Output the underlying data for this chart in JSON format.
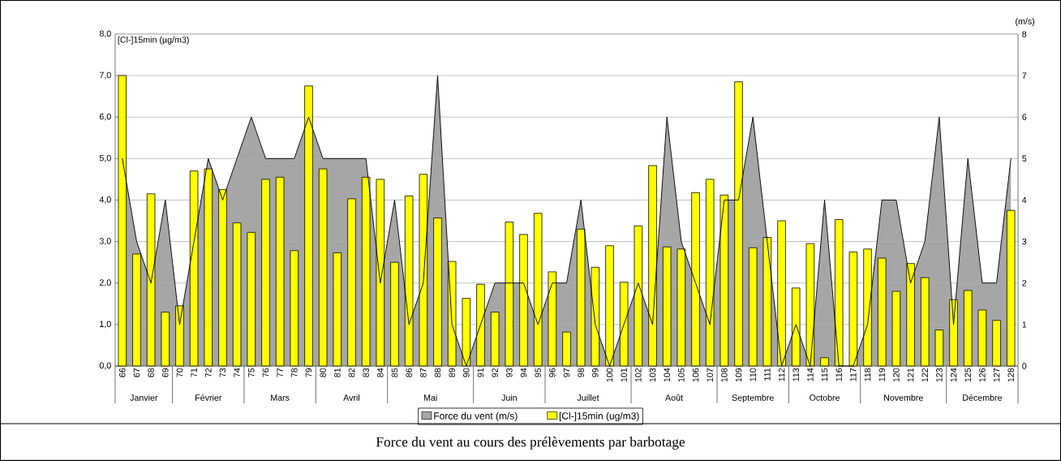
{
  "chart_data": {
    "type": "bar",
    "title": "Force du vent au cours des prélèvements par barbotage",
    "ylabel": "[Cl-]15min (µg/m3)",
    "y2label": "(m/s)",
    "categories": [
      "66",
      "67",
      "68",
      "69",
      "70",
      "71",
      "72",
      "73",
      "74",
      "75",
      "76",
      "77",
      "78",
      "79",
      "80",
      "81",
      "82",
      "83",
      "84",
      "85",
      "86",
      "87",
      "88",
      "89",
      "90",
      "91",
      "92",
      "93",
      "94",
      "95",
      "96",
      "97",
      "98",
      "99",
      "100",
      "101",
      "102",
      "103",
      "104",
      "105",
      "106",
      "107",
      "108",
      "109",
      "110",
      "111",
      "112",
      "113",
      "114",
      "115",
      "116",
      "117",
      "118",
      "119",
      "120",
      "121",
      "122",
      "123",
      "124",
      "125",
      "126",
      "127",
      "128"
    ],
    "series": [
      {
        "name": "Force du vent (m/s)",
        "type": "area",
        "axis": "y2",
        "color": "#a6a6a6",
        "values": [
          5,
          3,
          2,
          4,
          1,
          3,
          5,
          4,
          5,
          6,
          5,
          5,
          5,
          6,
          5,
          5,
          5,
          5,
          2,
          4,
          1,
          2,
          7,
          1,
          0,
          1,
          2,
          2,
          2,
          1,
          2,
          2,
          4,
          1,
          0,
          1,
          2,
          1,
          6,
          3,
          2,
          1,
          4,
          4,
          6,
          3,
          0,
          1,
          0,
          4,
          0,
          0,
          1,
          4,
          4,
          2,
          3,
          6,
          1,
          5,
          2,
          2,
          5
        ]
      },
      {
        "name": "[Cl-]15min (ug/m3)",
        "color": "#ffff00",
        "values": [
          7.0,
          2.7,
          4.15,
          1.3,
          1.45,
          4.7,
          4.75,
          4.25,
          3.45,
          3.22,
          4.5,
          4.55,
          2.78,
          6.75,
          4.75,
          2.73,
          4.03,
          4.55,
          4.5,
          2.5,
          4.1,
          4.62,
          3.57,
          2.52,
          1.63,
          1.97,
          1.3,
          3.47,
          3.17,
          3.68,
          2.27,
          0.82,
          3.3,
          2.38,
          2.9,
          2.02,
          3.38,
          4.83,
          2.87,
          2.82,
          4.18,
          4.5,
          4.12,
          6.85,
          2.85,
          3.1,
          3.5,
          1.88,
          2.95,
          0.2,
          3.53,
          2.75,
          2.82,
          2.6,
          1.8,
          2.47,
          2.13,
          0.87,
          1.6,
          1.82,
          1.35,
          1.1,
          3.75
        ]
      }
    ],
    "ylim": [
      0,
      8
    ],
    "yticks": [
      {
        "value": 0,
        "label": "0,0"
      },
      {
        "value": 1,
        "label": "1,0"
      },
      {
        "value": 2,
        "label": "2,0"
      },
      {
        "value": 3,
        "label": "3,0"
      },
      {
        "value": 4,
        "label": "4,0"
      },
      {
        "value": 5,
        "label": "5,0"
      },
      {
        "value": 6,
        "label": "6,0"
      },
      {
        "value": 7,
        "label": "7,0"
      },
      {
        "value": 8,
        "label": "8,0"
      }
    ],
    "y2lim": [
      0,
      8
    ],
    "y2ticks": [
      0,
      1,
      2,
      3,
      4,
      5,
      6,
      7,
      8
    ],
    "grid": "y",
    "legend": "bottom",
    "annotations": [
      "Janvier",
      "Février",
      "Mars",
      "Avril",
      "Mai",
      "Juin",
      "Juillet",
      "Août",
      "Septembre",
      "Octobre",
      "Novembre",
      "Décembre"
    ]
  }
}
